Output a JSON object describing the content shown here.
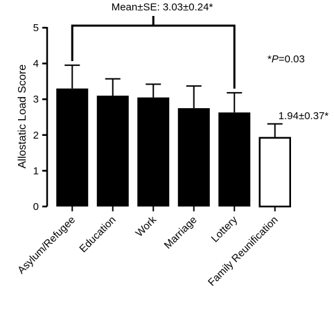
{
  "chart_data": {
    "type": "bar",
    "ylabel": "Allostatic Load Score",
    "xlabel": "",
    "ylim": [
      0,
      5
    ],
    "yticks": [
      0,
      1,
      2,
      3,
      4,
      5
    ],
    "grid": false,
    "categories": [
      "Asylum/Refugee",
      "Education",
      "Work",
      "Marriage",
      "Lottery",
      "Family Reunification"
    ],
    "values": [
      3.3,
      3.1,
      3.05,
      2.75,
      2.63,
      1.94
    ],
    "errors": [
      0.65,
      0.47,
      0.37,
      0.62,
      0.55,
      0.37
    ],
    "bar_fills": [
      "#000000",
      "#000000",
      "#000000",
      "#000000",
      "#000000",
      "#ffffff"
    ],
    "annotations": {
      "group_mean": "Mean±SE: 3.03±0.24*",
      "family_mean": "1.94±0.37*",
      "p_prefix": "*",
      "p_letter": "P",
      "p_value": "=0.03"
    }
  }
}
